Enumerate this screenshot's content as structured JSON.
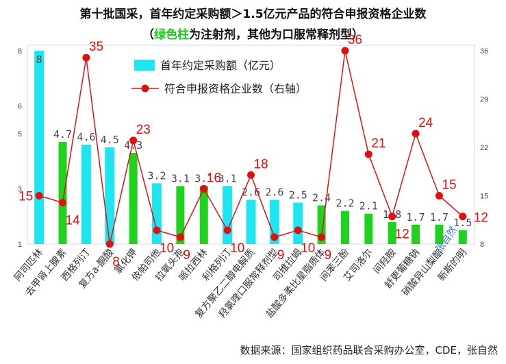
{
  "title": {
    "line1": "第十批国采，首年约定采购额＞1.5亿元产品的符合申报资格企业数",
    "line2_prefix": "（",
    "line2_green": "绿色柱",
    "line2_rest": "为注射剂，其他为口服常释剂型）"
  },
  "source": "数据来源：国家组织药品联合采购办公室，CDE，张自然",
  "watermark": "张自然",
  "colors": {
    "cyan_bar": "#1ee6f0",
    "green_bar": "#1ed21e",
    "line": "#e01010",
    "green_title": "#19c819"
  },
  "chart_data": {
    "type": "bar",
    "categories": [
      "阿司匹林",
      "去甲肾上腺素",
      "西格列汀",
      "复方a-酮酸",
      "氯化钾",
      "依帕司他",
      "拉氧头孢",
      "哌拉西林",
      "利格列汀",
      "复方聚乙二醇电解质",
      "羟氯喹口服常释剂型",
      "司维拉姆",
      "盐酸多柔比星脂质体",
      "间苯三酚",
      "艾司洛尔",
      "间羟胺",
      "舒更葡糖钠",
      "硝酸异山梨酯",
      "新斯的明"
    ],
    "bar_types": [
      "oral",
      "injection",
      "oral",
      "oral",
      "injection",
      "oral",
      "injection",
      "injection",
      "oral",
      "oral",
      "oral",
      "oral",
      "injection",
      "injection",
      "injection",
      "injection",
      "injection",
      "injection",
      "injection"
    ],
    "bar_labels": [
      "8",
      "4.7",
      "4.6",
      "4.5",
      "4.3",
      "3.2",
      "3.1",
      "3.1",
      "3.1",
      "2.6",
      "2.6",
      "2.5",
      "2.4",
      "2.2",
      "2.1",
      "1.8",
      "1.7",
      "1.7",
      "1.5"
    ],
    "series": [
      {
        "name": "首年约定采购额（亿元）",
        "axis": "left",
        "values": [
          8,
          4.7,
          4.6,
          4.5,
          4.3,
          3.2,
          3.1,
          3.1,
          3.1,
          2.6,
          2.6,
          2.5,
          2.4,
          2.2,
          2.1,
          1.8,
          1.7,
          1.7,
          1.5
        ]
      },
      {
        "name": "符合申报资格企业数（右轴）",
        "axis": "right",
        "values": [
          15,
          14,
          35,
          8,
          23,
          10,
          9,
          16,
          10,
          18,
          9,
          10,
          9,
          36,
          21,
          12,
          24,
          15,
          12
        ]
      }
    ],
    "yleft": {
      "ticks": [
        1,
        2,
        3,
        4,
        5,
        6,
        7,
        8
      ],
      "tick_labels": [
        "1",
        "",
        "3",
        "",
        "5",
        "6",
        "",
        "8"
      ],
      "ylim": [
        1,
        8
      ]
    },
    "yright": {
      "ticks": [
        8,
        15,
        22,
        29,
        36
      ],
      "tick_labels": [
        "8",
        "15",
        "22",
        "29",
        "36"
      ],
      "ylim": [
        8,
        36
      ]
    },
    "legend_position": "top-center",
    "grid": false
  }
}
